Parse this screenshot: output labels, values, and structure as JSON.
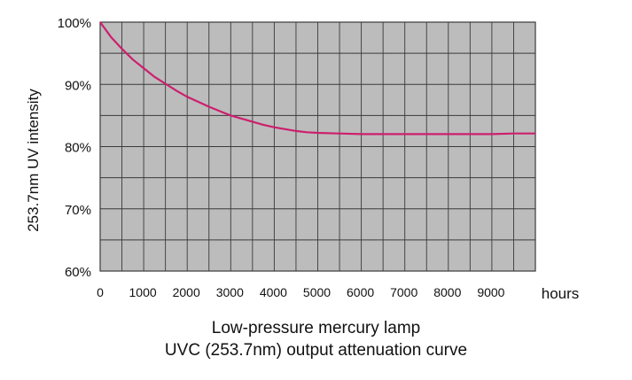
{
  "chart_data": {
    "type": "line",
    "title_lines": [
      "Low-pressure mercury lamp",
      "UVC (253.7nm) output attenuation curve"
    ],
    "ylabel": "253.7nm UV intensity",
    "xunit_label": "hours",
    "ylim": [
      60,
      100
    ],
    "xlim": [
      0,
      10000
    ],
    "y_ticks": [
      100,
      90,
      80,
      70,
      60
    ],
    "y_tick_labels": [
      "100%",
      "90%",
      "80%",
      "70%",
      "60%"
    ],
    "x_ticks": [
      0,
      1000,
      2000,
      3000,
      4000,
      5000,
      6000,
      7000,
      8000,
      9000
    ],
    "x_tick_labels": [
      "0",
      "1000",
      "2000",
      "3000",
      "4000",
      "5000",
      "6000",
      "7000",
      "8000",
      "9000"
    ],
    "grid": true,
    "series": [
      {
        "x": [
          0,
          250,
          500,
          750,
          1000,
          1250,
          1500,
          1750,
          2000,
          2250,
          2500,
          2750,
          3000,
          3250,
          3500,
          3750,
          4000,
          4250,
          4500,
          4750,
          5000,
          5500,
          6000,
          6500,
          7000,
          7500,
          8000,
          8500,
          9000,
          9500,
          10000
        ],
        "values": [
          100,
          97.6,
          95.7,
          94.0,
          92.6,
          91.2,
          90.1,
          89.0,
          88.0,
          87.2,
          86.4,
          85.7,
          85.0,
          84.5,
          84.0,
          83.5,
          83.1,
          82.8,
          82.5,
          82.3,
          82.2,
          82.1,
          82.0,
          82.0,
          82.0,
          82.0,
          82.0,
          82.0,
          82.0,
          82.1,
          82.1
        ]
      }
    ],
    "colors": {
      "plot_background": "#bcbcbc",
      "grid": "#3a3a3a",
      "curve": "#cc1f6e"
    }
  }
}
